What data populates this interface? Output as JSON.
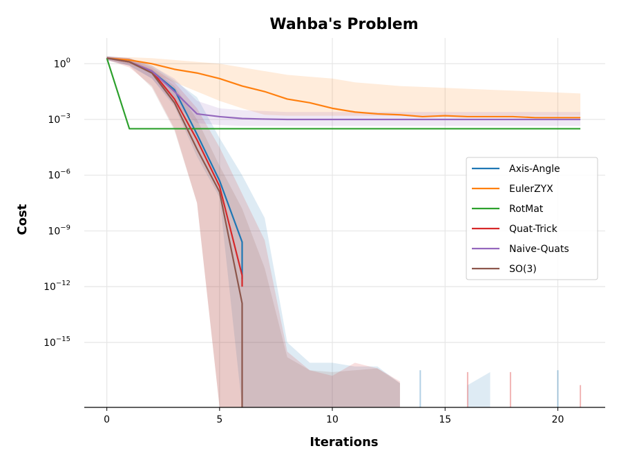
{
  "chart_data": {
    "type": "line",
    "title": "Wahba's Problem",
    "xlabel": "Iterations",
    "ylabel": "Cost",
    "yscale": "log",
    "xlim": [
      -1,
      22.1
    ],
    "ylim_exp": [
      -18.5,
      1.2
    ],
    "x_ticks": [
      0,
      5,
      10,
      15,
      20
    ],
    "y_ticks_exp": [
      0,
      -3,
      -6,
      -9,
      -12,
      -15
    ],
    "grid": true,
    "legend_placement": "center-right",
    "series": [
      {
        "name": "Axis-Angle",
        "color": "#1f77b4",
        "x": [
          0,
          1,
          2,
          3,
          4,
          5,
          6,
          6
        ],
        "y_exp": [
          0.3,
          0.1,
          -0.4,
          -1.4,
          -3.8,
          -6.3,
          -9.6,
          -11.6
        ],
        "band_x": [
          0,
          1,
          2,
          3,
          4,
          5,
          6,
          7,
          8,
          9,
          10,
          11,
          12,
          13
        ],
        "band_upper_exp": [
          0.4,
          0.3,
          -0.1,
          -0.9,
          -1.8,
          -4.0,
          -6.0,
          -8.3,
          -15.0,
          -16.1,
          -16.1,
          -16.3,
          -16.3,
          -17.2
        ],
        "band_lower_exp": [
          0.2,
          -0.1,
          -0.8,
          -2.3,
          -5.0,
          -7.2,
          -18.5,
          -18.5,
          -18.5,
          -18.5,
          -18.5,
          -18.5,
          -18.5,
          -18.5
        ]
      },
      {
        "name": "EulerZYX",
        "color": "#ff7f0e",
        "x": [
          0,
          1,
          2,
          3,
          4,
          5,
          6,
          7,
          8,
          9,
          10,
          11,
          12,
          13,
          14,
          15,
          16,
          17,
          18,
          19,
          20,
          21
        ],
        "y_exp": [
          0.3,
          0.2,
          0.0,
          -0.3,
          -0.5,
          -0.8,
          -1.2,
          -1.5,
          -1.9,
          -2.1,
          -2.4,
          -2.6,
          -2.7,
          -2.75,
          -2.85,
          -2.8,
          -2.85,
          -2.85,
          -2.85,
          -2.9,
          -2.9,
          -2.9
        ],
        "band_upper_exp": [
          0.35,
          0.35,
          0.3,
          0.2,
          0.1,
          0.0,
          -0.2,
          -0.4,
          -0.6,
          -0.7,
          -0.8,
          -1.0,
          -1.1,
          -1.2,
          -1.25,
          -1.3,
          -1.35,
          -1.4,
          -1.45,
          -1.5,
          -1.55,
          -1.6
        ],
        "band_lower_exp": [
          0.25,
          0.0,
          -0.5,
          -1.0,
          -1.5,
          -2.0,
          -2.4,
          -2.75,
          -2.8,
          -2.8,
          -2.8,
          -2.8,
          -2.8,
          -2.8,
          -2.8,
          -2.8,
          -2.8,
          -2.8,
          -2.8,
          -2.8,
          -2.8,
          -2.8
        ]
      },
      {
        "name": "RotMat",
        "color": "#2ca02c",
        "x": [
          0,
          1,
          2,
          3,
          4,
          5,
          6,
          7,
          8,
          9,
          10,
          11,
          12,
          13,
          14,
          15,
          16,
          17,
          18,
          19,
          20,
          21
        ],
        "y_exp": [
          0.3,
          -3.5,
          -3.5,
          -3.5,
          -3.5,
          -3.5,
          -3.5,
          -3.5,
          -3.5,
          -3.5,
          -3.5,
          -3.5,
          -3.5,
          -3.5,
          -3.5,
          -3.5,
          -3.5,
          -3.5,
          -3.5,
          -3.5,
          -3.5,
          -3.5
        ]
      },
      {
        "name": "Quat-Trick",
        "color": "#d62728",
        "x": [
          0,
          1,
          2,
          3,
          4,
          5,
          6,
          6
        ],
        "y_exp": [
          0.3,
          0.1,
          -0.4,
          -1.9,
          -4.1,
          -6.6,
          -11.4,
          -12.0
        ],
        "band_x": [
          0,
          1,
          2,
          3,
          4,
          5,
          6,
          7,
          8,
          9,
          10,
          11,
          12,
          13
        ],
        "band_upper_exp": [
          0.4,
          0.3,
          -0.2,
          -1.0,
          -2.4,
          -4.5,
          -7.0,
          -9.5,
          -15.5,
          -16.5,
          -16.8,
          -16.1,
          -16.4,
          -17.1
        ],
        "band_lower_exp": [
          0.2,
          -0.2,
          -1.2,
          -3.5,
          -7.5,
          -18.5,
          -18.5,
          -18.5,
          -18.5,
          -18.5,
          -18.5,
          -18.5,
          -18.5,
          -18.5
        ]
      },
      {
        "name": "Naive-Quats",
        "color": "#9467bd",
        "x": [
          0,
          1,
          2,
          3,
          4,
          5,
          6,
          7,
          8,
          9,
          10,
          11,
          12,
          13,
          14,
          15,
          16,
          17,
          18,
          19,
          20,
          21
        ],
        "y_exp": [
          0.3,
          0.1,
          -0.4,
          -1.5,
          -2.7,
          -2.85,
          -2.95,
          -2.98,
          -3.0,
          -3.0,
          -3.0,
          -3.0,
          -3.0,
          -3.0,
          -3.0,
          -3.0,
          -3.0,
          -3.0,
          -3.0,
          -3.0,
          -3.0,
          -3.0
        ],
        "band_upper_exp": [
          0.4,
          0.3,
          -0.1,
          -0.8,
          -2.0,
          -2.4,
          -2.5,
          -2.55,
          -2.6,
          -2.6,
          -2.6,
          -2.6,
          -2.6,
          -2.6,
          -2.6,
          -2.6,
          -2.6,
          -2.6,
          -2.6,
          -2.6,
          -2.6,
          -2.6
        ],
        "band_lower_exp": [
          0.2,
          -0.1,
          -0.8,
          -2.2,
          -3.2,
          -3.3,
          -3.35,
          -3.35,
          -3.35,
          -3.35,
          -3.35,
          -3.35,
          -3.35,
          -3.35,
          -3.35,
          -3.35,
          -3.35,
          -3.35,
          -3.35,
          -3.35,
          -3.35,
          -3.35
        ]
      },
      {
        "name": "SO(3)",
        "color": "#8c564b",
        "x": [
          0,
          1,
          2,
          3,
          4,
          5,
          6,
          6
        ],
        "y_exp": [
          0.3,
          0.1,
          -0.5,
          -2.1,
          -4.6,
          -6.9,
          -12.9,
          -18.5
        ],
        "band_x": [
          0,
          1,
          2,
          3,
          4,
          5,
          6,
          7,
          8,
          9,
          10,
          11,
          12,
          13
        ],
        "band_upper_exp": [
          0.4,
          0.2,
          -0.3,
          -1.2,
          -3.0,
          -5.5,
          -7.8,
          -11.0,
          -15.8,
          -16.5,
          -16.6,
          -16.5,
          -16.4,
          -17.2
        ],
        "band_lower_exp": [
          0.2,
          -0.1,
          -1.3,
          -3.6,
          -7.5,
          -18.5,
          -18.5,
          -18.5,
          -18.5,
          -18.5,
          -18.5,
          -18.5,
          -18.5,
          -18.5
        ]
      }
    ],
    "spikes": [
      {
        "x": 13.9,
        "top_exp": -16.5,
        "color": "#1f77b4"
      },
      {
        "x": 16.0,
        "top_exp": -16.6,
        "color": "#d62728"
      },
      {
        "x": 17.9,
        "top_exp": -16.6,
        "color": "#d62728"
      },
      {
        "x": 20.0,
        "top_exp": -16.5,
        "color": "#1f77b4"
      },
      {
        "x": 21.0,
        "top_exp": -17.3,
        "color": "#d62728"
      }
    ],
    "extra_bands": [
      {
        "color": "#1f77b4",
        "x": [
          16,
          17
        ],
        "upper_exp": [
          -17.3,
          -16.6
        ],
        "lower_exp": [
          -18.5,
          -18.5
        ]
      }
    ]
  }
}
